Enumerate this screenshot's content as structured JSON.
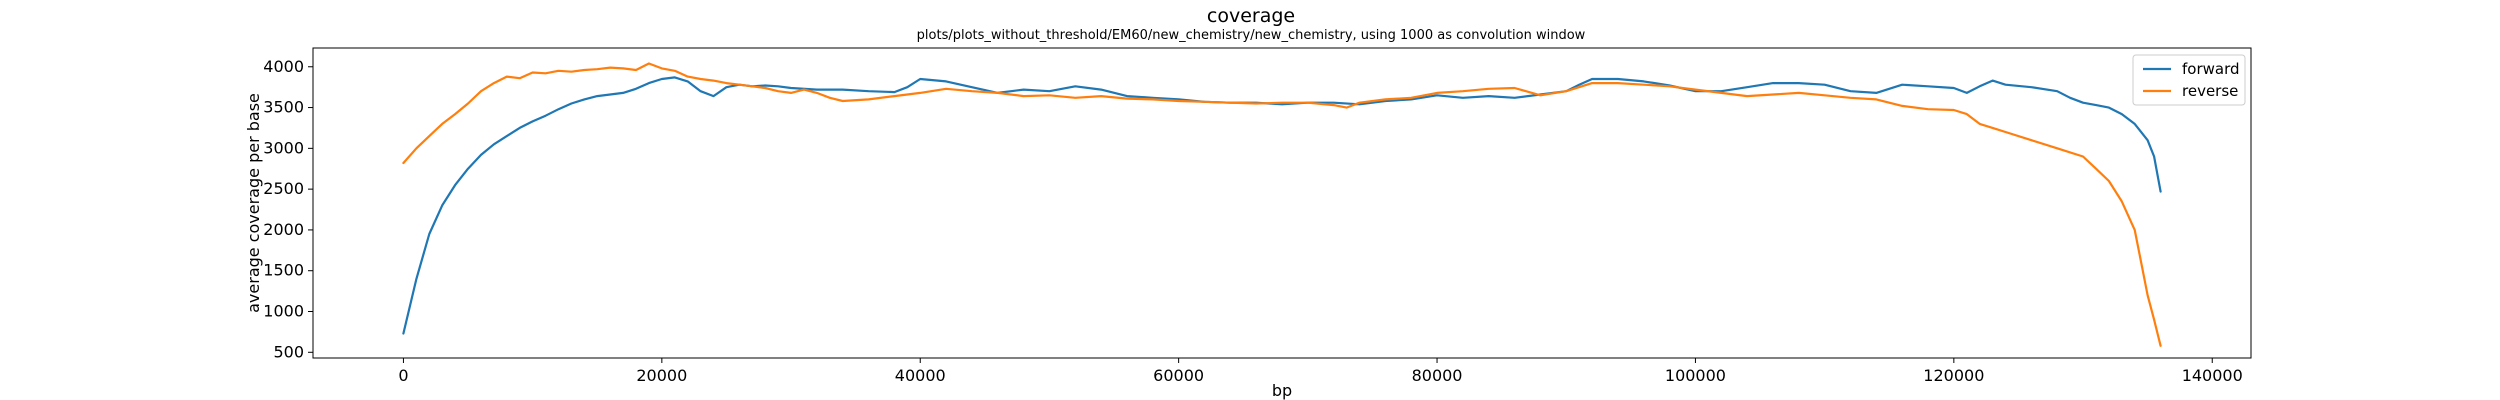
{
  "chart_data": {
    "type": "line",
    "title": "coverage",
    "subtitle": "plots/plots_without_threshold/EM60/new_chemistry/new_chemistry, using 1000 as convolution window",
    "xlabel": "bp",
    "ylabel": "average coverage per base",
    "xlim": [
      -7000,
      143000
    ],
    "ylim": [
      430,
      4230
    ],
    "xticks": [
      0,
      20000,
      40000,
      60000,
      80000,
      100000,
      120000,
      140000
    ],
    "xtick_labels": [
      "0",
      "20000",
      "40000",
      "60000",
      "80000",
      "100000",
      "120000",
      "140000"
    ],
    "yticks": [
      500,
      1000,
      1500,
      2000,
      2500,
      3000,
      3500,
      4000
    ],
    "ytick_labels": [
      "500",
      "1000",
      "1500",
      "2000",
      "2500",
      "3000",
      "3500",
      "4000"
    ],
    "grid": false,
    "legend_position": "top-right",
    "series": [
      {
        "name": "forward",
        "color": "#1f77b4",
        "x": [
          0,
          1000,
          2000,
          3000,
          4000,
          5000,
          6000,
          7000,
          8000,
          9000,
          10000,
          11000,
          12000,
          13000,
          14000,
          15000,
          16000,
          17000,
          18000,
          19000,
          20000,
          21000,
          22000,
          23000,
          24000,
          25000,
          26000,
          27000,
          28000,
          29000,
          30000,
          32000,
          34000,
          36000,
          38000,
          39000,
          40000,
          42000,
          44000,
          46000,
          48000,
          50000,
          52000,
          54000,
          56000,
          58000,
          60000,
          62000,
          64000,
          66000,
          68000,
          70000,
          72000,
          74000,
          76000,
          78000,
          80000,
          82000,
          84000,
          86000,
          88000,
          90000,
          91000,
          92000,
          94000,
          96000,
          98000,
          100000,
          102000,
          104000,
          106000,
          108000,
          110000,
          112000,
          114000,
          116000,
          118000,
          120000,
          121000,
          122000,
          123000,
          124000,
          126000,
          128000,
          129000,
          130000,
          131000,
          132000,
          133000,
          134000,
          135000,
          135500,
          136000
        ],
        "y": [
          730,
          1400,
          1950,
          2300,
          2550,
          2750,
          2920,
          3050,
          3150,
          3250,
          3330,
          3400,
          3480,
          3550,
          3600,
          3640,
          3660,
          3680,
          3730,
          3800,
          3850,
          3870,
          3820,
          3700,
          3640,
          3750,
          3780,
          3760,
          3770,
          3760,
          3740,
          3720,
          3720,
          3700,
          3690,
          3750,
          3850,
          3820,
          3750,
          3680,
          3720,
          3700,
          3760,
          3720,
          3640,
          3620,
          3600,
          3570,
          3560,
          3560,
          3540,
          3560,
          3560,
          3540,
          3580,
          3600,
          3650,
          3620,
          3640,
          3620,
          3660,
          3700,
          3780,
          3850,
          3850,
          3820,
          3770,
          3700,
          3700,
          3750,
          3800,
          3800,
          3780,
          3700,
          3680,
          3780,
          3760,
          3740,
          3680,
          3760,
          3830,
          3780,
          3750,
          3700,
          3620,
          3560,
          3530,
          3500,
          3420,
          3300,
          3100,
          2900,
          2470
        ]
      },
      {
        "name": "reverse",
        "color": "#ff7f0e",
        "x": [
          0,
          1000,
          2000,
          3000,
          4000,
          5000,
          6000,
          7000,
          8000,
          9000,
          10000,
          11000,
          12000,
          13000,
          14000,
          15000,
          16000,
          17000,
          18000,
          19000,
          20000,
          21000,
          22000,
          23000,
          24000,
          25000,
          26000,
          27000,
          28000,
          29000,
          30000,
          31000,
          32000,
          33000,
          34000,
          36000,
          38000,
          40000,
          42000,
          44000,
          46000,
          48000,
          50000,
          52000,
          54000,
          56000,
          58000,
          60000,
          62000,
          64000,
          66000,
          68000,
          70000,
          72000,
          73000,
          74000,
          76000,
          78000,
          80000,
          82000,
          84000,
          86000,
          88000,
          90000,
          92000,
          94000,
          96000,
          98000,
          100000,
          102000,
          104000,
          106000,
          108000,
          110000,
          112000,
          114000,
          116000,
          118000,
          120000,
          121000,
          122000,
          123000,
          124000,
          126000,
          128000,
          130000,
          131000,
          132000,
          133000,
          134000,
          134500,
          135000,
          135500,
          136000
        ],
        "y": [
          2820,
          3000,
          3150,
          3300,
          3420,
          3550,
          3700,
          3800,
          3880,
          3860,
          3930,
          3920,
          3950,
          3940,
          3960,
          3970,
          3990,
          3980,
          3960,
          4040,
          3980,
          3950,
          3880,
          3850,
          3830,
          3800,
          3780,
          3760,
          3740,
          3700,
          3680,
          3720,
          3680,
          3620,
          3580,
          3600,
          3640,
          3680,
          3730,
          3700,
          3680,
          3640,
          3650,
          3620,
          3640,
          3610,
          3600,
          3580,
          3570,
          3560,
          3550,
          3560,
          3560,
          3530,
          3500,
          3560,
          3600,
          3620,
          3680,
          3700,
          3730,
          3740,
          3650,
          3700,
          3800,
          3800,
          3780,
          3760,
          3720,
          3680,
          3640,
          3660,
          3680,
          3650,
          3620,
          3600,
          3520,
          3480,
          3470,
          3420,
          3300,
          3250,
          3200,
          3100,
          3000,
          2900,
          2750,
          2600,
          2350,
          2000,
          1600,
          1200,
          900,
          580
        ]
      }
    ]
  }
}
